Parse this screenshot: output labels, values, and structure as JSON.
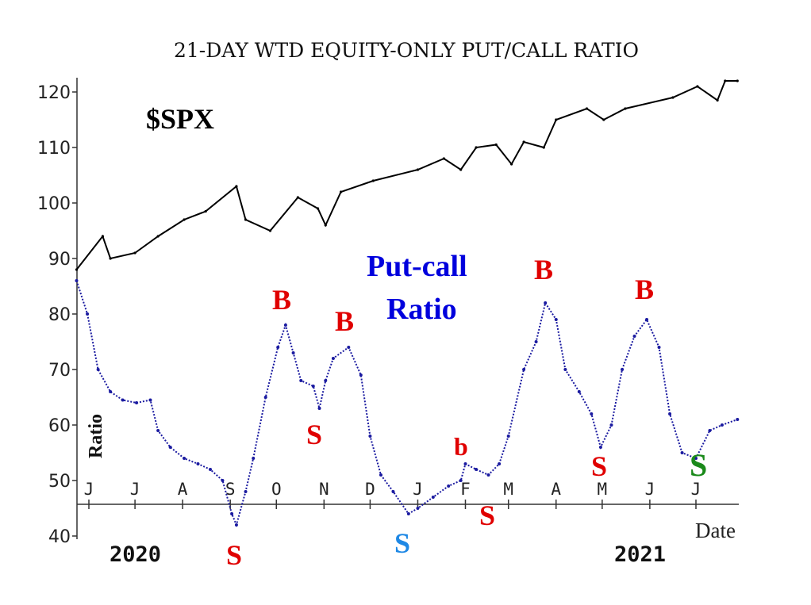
{
  "chart_data": {
    "type": "line",
    "title": "21-DAY WTD EQUITY-ONLY PUT/CALL RATIO",
    "xlabel": "Date",
    "ylabel": "Ratio",
    "ylim": [
      40,
      120
    ],
    "yticks": [
      "40",
      "50",
      "60",
      "70",
      "80",
      "90",
      "100",
      "110",
      "120"
    ],
    "xticks": [
      {
        "label": "J",
        "date": "2020-06-01"
      },
      {
        "label": "J",
        "date": "2020-07-01"
      },
      {
        "label": "A",
        "date": "2020-08-01"
      },
      {
        "label": "S",
        "date": "2020-09-01"
      },
      {
        "label": "O",
        "date": "2020-10-01"
      },
      {
        "label": "N",
        "date": "2020-11-01"
      },
      {
        "label": "D",
        "date": "2020-12-01"
      },
      {
        "label": "J",
        "date": "2021-01-01"
      },
      {
        "label": "F",
        "date": "2021-02-01"
      },
      {
        "label": "M",
        "date": "2021-03-01"
      },
      {
        "label": "A",
        "date": "2021-04-01"
      },
      {
        "label": "M",
        "date": "2021-05-01"
      },
      {
        "label": "J",
        "date": "2021-06-01"
      },
      {
        "label": "J",
        "date": "2021-07-01"
      }
    ],
    "years": [
      "2020",
      "2021"
    ],
    "grid": false,
    "series": [
      {
        "name": "$SPX",
        "color": "#000000",
        "points": [
          [
            "2020-05-24",
            88
          ],
          [
            "2020-06-10",
            94
          ],
          [
            "2020-06-15",
            90
          ],
          [
            "2020-07-01",
            91
          ],
          [
            "2020-07-16",
            94
          ],
          [
            "2020-08-02",
            97
          ],
          [
            "2020-08-16",
            98.5
          ],
          [
            "2020-09-05",
            103
          ],
          [
            "2020-09-11",
            97
          ],
          [
            "2020-09-27",
            95
          ],
          [
            "2020-10-15",
            101
          ],
          [
            "2020-10-28",
            99
          ],
          [
            "2020-11-02",
            96
          ],
          [
            "2020-11-12",
            102
          ],
          [
            "2020-12-03",
            104
          ],
          [
            "2021-01-01",
            106
          ],
          [
            "2021-01-18",
            108
          ],
          [
            "2021-01-29",
            106
          ],
          [
            "2021-02-08",
            110
          ],
          [
            "2021-02-21",
            110.5
          ],
          [
            "2021-03-03",
            107
          ],
          [
            "2021-03-11",
            111
          ],
          [
            "2021-03-24",
            110
          ],
          [
            "2021-04-01",
            115
          ],
          [
            "2021-04-21",
            117
          ],
          [
            "2021-05-02",
            115
          ],
          [
            "2021-05-16",
            117
          ],
          [
            "2021-06-16",
            119
          ],
          [
            "2021-07-02",
            121
          ],
          [
            "2021-07-15",
            118.5
          ],
          [
            "2021-07-20",
            122
          ],
          [
            "2021-07-28",
            122
          ]
        ]
      },
      {
        "name": "Put-call Ratio",
        "color": "#1a1aa0",
        "points": [
          [
            "2020-05-24",
            86
          ],
          [
            "2020-05-31",
            80
          ],
          [
            "2020-06-07",
            70
          ],
          [
            "2020-06-15",
            66
          ],
          [
            "2020-06-23",
            64.5
          ],
          [
            "2020-07-02",
            64
          ],
          [
            "2020-07-11",
            64.5
          ],
          [
            "2020-07-16",
            59
          ],
          [
            "2020-07-24",
            56
          ],
          [
            "2020-08-02",
            54
          ],
          [
            "2020-08-11",
            53
          ],
          [
            "2020-08-19",
            52
          ],
          [
            "2020-08-27",
            50
          ],
          [
            "2020-09-02",
            44
          ],
          [
            "2020-09-05",
            42
          ],
          [
            "2020-09-11",
            48
          ],
          [
            "2020-09-16",
            54
          ],
          [
            "2020-09-24",
            65
          ],
          [
            "2020-10-02",
            74
          ],
          [
            "2020-10-07",
            78
          ],
          [
            "2020-10-12",
            73
          ],
          [
            "2020-10-17",
            68
          ],
          [
            "2020-10-25",
            67
          ],
          [
            "2020-10-29",
            63
          ],
          [
            "2020-11-02",
            68
          ],
          [
            "2020-11-07",
            72
          ],
          [
            "2020-11-17",
            74
          ],
          [
            "2020-11-25",
            69
          ],
          [
            "2020-12-01",
            58
          ],
          [
            "2020-12-08",
            51
          ],
          [
            "2020-12-16",
            48
          ],
          [
            "2020-12-26",
            44
          ],
          [
            "2021-01-01",
            45
          ],
          [
            "2021-01-11",
            47
          ],
          [
            "2021-01-21",
            49
          ],
          [
            "2021-01-29",
            50
          ],
          [
            "2021-02-01",
            53
          ],
          [
            "2021-02-08",
            52
          ],
          [
            "2021-02-16",
            51
          ],
          [
            "2021-02-23",
            53
          ],
          [
            "2021-03-01",
            58
          ],
          [
            "2021-03-11",
            70
          ],
          [
            "2021-03-19",
            75
          ],
          [
            "2021-03-25",
            82
          ],
          [
            "2021-04-01",
            79
          ],
          [
            "2021-04-07",
            70
          ],
          [
            "2021-04-16",
            66
          ],
          [
            "2021-04-24",
            62
          ],
          [
            "2021-04-30",
            56
          ],
          [
            "2021-05-07",
            60
          ],
          [
            "2021-05-14",
            70
          ],
          [
            "2021-05-22",
            76
          ],
          [
            "2021-05-30",
            79
          ],
          [
            "2021-06-07",
            74
          ],
          [
            "2021-06-14",
            62
          ],
          [
            "2021-06-22",
            55
          ],
          [
            "2021-07-01",
            54
          ],
          [
            "2021-07-10",
            59
          ],
          [
            "2021-07-18",
            60
          ],
          [
            "2021-07-28",
            61
          ]
        ]
      }
    ],
    "annotations": [
      {
        "text": "$SPX",
        "color": "#000000"
      },
      {
        "text": "Put-call",
        "color": "#0000dd"
      },
      {
        "text": "Ratio",
        "color": "#0000dd"
      },
      {
        "text": "B",
        "color": "#e00000"
      },
      {
        "text": "B",
        "color": "#e00000"
      },
      {
        "text": "S",
        "color": "#e00000"
      },
      {
        "text": "S",
        "color": "#e00000"
      },
      {
        "text": "S",
        "color": "#1e88e5"
      },
      {
        "text": "b",
        "color": "#e00000"
      },
      {
        "text": "S",
        "color": "#e00000"
      },
      {
        "text": "B",
        "color": "#e00000"
      },
      {
        "text": "S",
        "color": "#e00000"
      },
      {
        "text": "B",
        "color": "#e00000"
      },
      {
        "text": "S",
        "color": "#1a8a1a"
      }
    ]
  }
}
